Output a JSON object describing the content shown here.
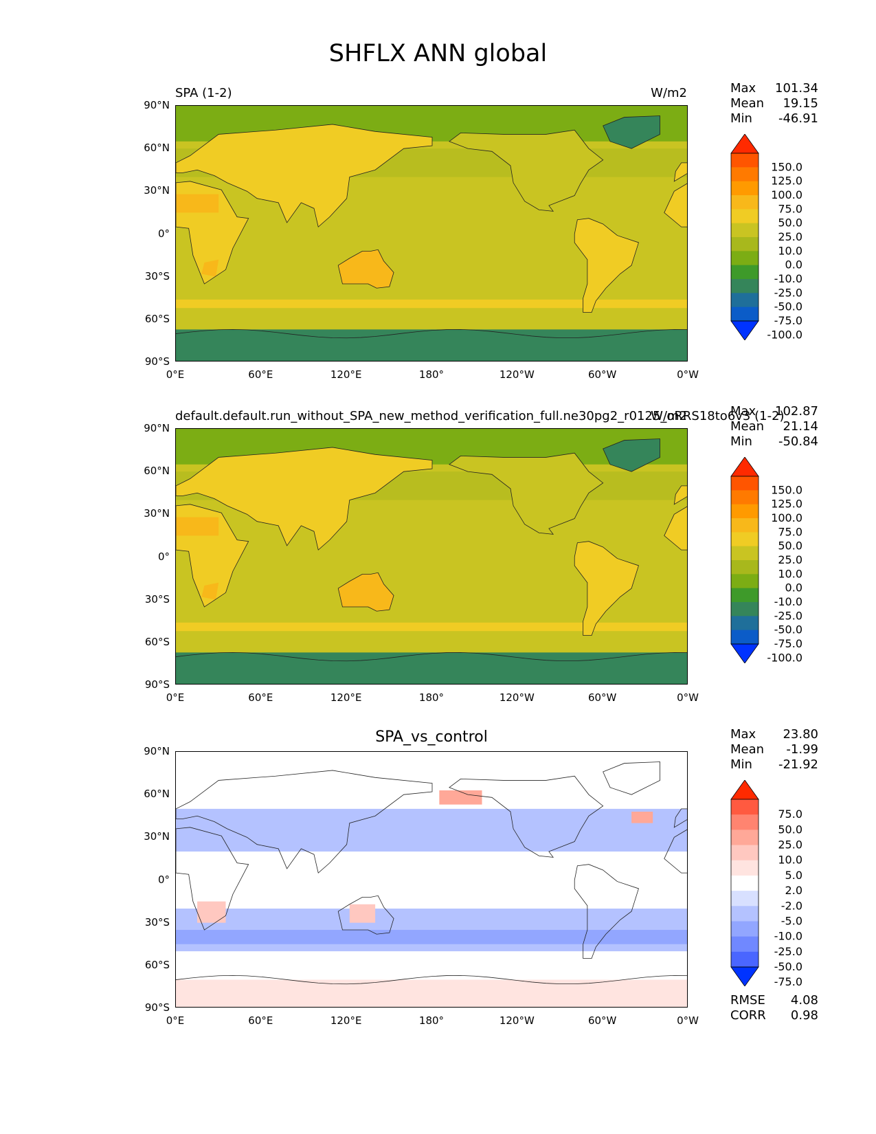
{
  "figure": {
    "title": "SHFLX ANN global"
  },
  "chart_data": [
    {
      "type": "heatmap",
      "title_left": "SPA (1-2)",
      "title_right": "W/m2",
      "xticks": [
        "0°E",
        "60°E",
        "120°E",
        "180°",
        "120°W",
        "60°W",
        "0°W"
      ],
      "yticks": [
        "90°N",
        "60°N",
        "30°N",
        "0°",
        "30°S",
        "60°S",
        "90°S"
      ],
      "xlim": [
        0,
        360
      ],
      "ylim": [
        -90,
        90
      ],
      "stats": {
        "max_label": "Max",
        "max": "101.34",
        "mean_label": "Mean",
        "mean": "19.15",
        "min_label": "Min",
        "min": "-46.91"
      },
      "colorbar": {
        "levels": [
          "150.0",
          "125.0",
          "100.0",
          "75.0",
          "50.0",
          "25.0",
          "10.0",
          "0.0",
          "-10.0",
          "-25.0",
          "-50.0",
          "-75.0",
          "-100.0"
        ],
        "colors": [
          "#ff2a00",
          "#ff5500",
          "#ff7a00",
          "#ff9a00",
          "#f8b81a",
          "#f0cc24",
          "#c9c422",
          "#a8b81c",
          "#7cad14",
          "#3e9a2a",
          "#35855a",
          "#1f6f9a",
          "#0b5cc8",
          "#0033ff"
        ]
      }
    },
    {
      "type": "heatmap",
      "title_left": "default.default.run_without_SPA_new_method_verification_full.ne30pg2_r0125_oRRS18to6v3 (1-2)",
      "title_right": "W/m2",
      "xticks": [
        "0°E",
        "60°E",
        "120°E",
        "180°",
        "120°W",
        "60°W",
        "0°W"
      ],
      "yticks": [
        "90°N",
        "60°N",
        "30°N",
        "0°",
        "30°S",
        "60°S",
        "90°S"
      ],
      "xlim": [
        0,
        360
      ],
      "ylim": [
        -90,
        90
      ],
      "stats": {
        "max_label": "Max",
        "max": "102.87",
        "mean_label": "Mean",
        "mean": "21.14",
        "min_label": "Min",
        "min": "-50.84"
      },
      "colorbar": {
        "levels": [
          "150.0",
          "125.0",
          "100.0",
          "75.0",
          "50.0",
          "25.0",
          "10.0",
          "0.0",
          "-10.0",
          "-25.0",
          "-50.0",
          "-75.0",
          "-100.0"
        ],
        "colors": [
          "#ff2a00",
          "#ff5500",
          "#ff7a00",
          "#ff9a00",
          "#f8b81a",
          "#f0cc24",
          "#c9c422",
          "#a8b81c",
          "#7cad14",
          "#3e9a2a",
          "#35855a",
          "#1f6f9a",
          "#0b5cc8",
          "#0033ff"
        ]
      }
    },
    {
      "type": "heatmap",
      "title_center": "SPA_vs_control",
      "xticks": [
        "0°E",
        "60°E",
        "120°E",
        "180°",
        "120°W",
        "60°W",
        "0°W"
      ],
      "yticks": [
        "90°N",
        "60°N",
        "30°N",
        "0°",
        "30°S",
        "60°S",
        "90°S"
      ],
      "xlim": [
        0,
        360
      ],
      "ylim": [
        -90,
        90
      ],
      "stats": {
        "max_label": "Max",
        "max": "23.80",
        "mean_label": "Mean",
        "mean": "-1.99",
        "min_label": "Min",
        "min": "-21.92"
      },
      "metrics": {
        "rmse_label": "RMSE",
        "rmse": "4.08",
        "corr_label": "CORR",
        "corr": "0.98"
      },
      "colorbar": {
        "levels": [
          "75.0",
          "50.0",
          "25.0",
          "10.0",
          "5.0",
          "2.0",
          "-2.0",
          "-5.0",
          "-10.0",
          "-25.0",
          "-50.0",
          "-75.0"
        ],
        "colors": [
          "#ff2a00",
          "#ff5a40",
          "#ff8470",
          "#ffa898",
          "#ffc8c0",
          "#ffe4e0",
          "#ffffff",
          "#d8e0ff",
          "#b4c2ff",
          "#92a6ff",
          "#7088ff",
          "#4a66ff",
          "#0033ff"
        ]
      }
    }
  ]
}
